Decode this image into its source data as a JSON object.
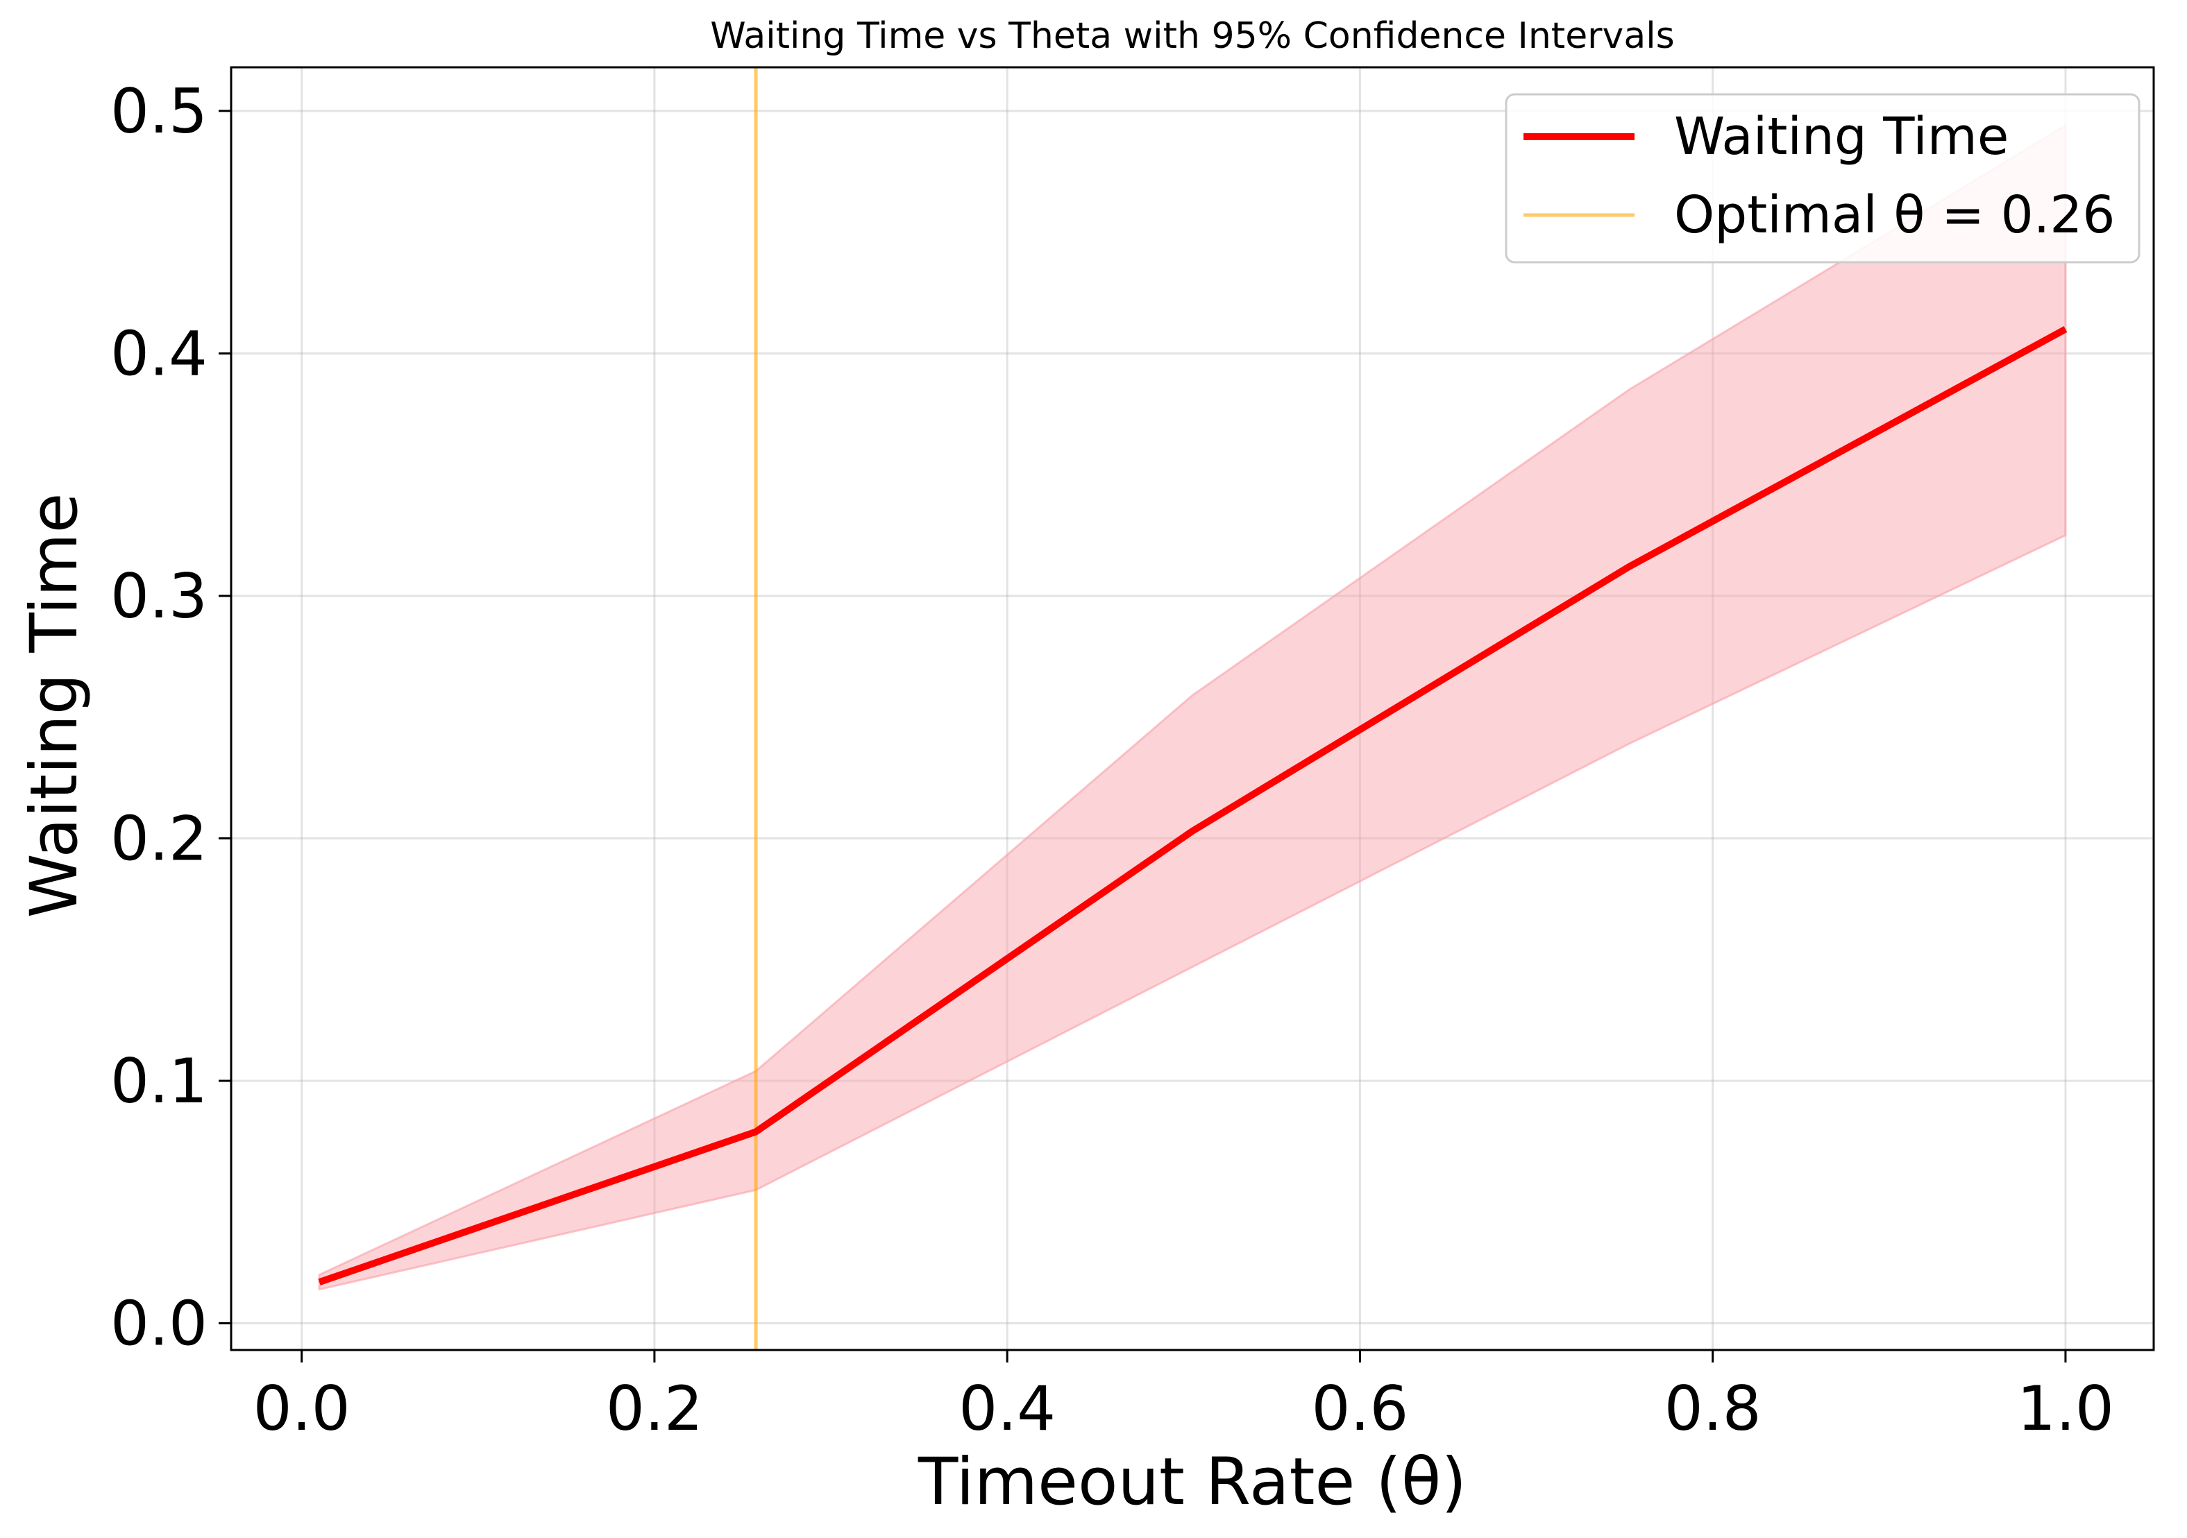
{
  "chart_data": {
    "type": "line",
    "title": "Waiting Time vs Theta with 95% Confidence Intervals",
    "xlabel": "Timeout Rate (θ)",
    "ylabel": "Waiting Time",
    "xlim": [
      -0.04,
      1.05
    ],
    "ylim": [
      -0.011,
      0.518
    ],
    "xticks": [
      0.0,
      0.2,
      0.4,
      0.6,
      0.8,
      1.0
    ],
    "xtick_labels": [
      "0.0",
      "0.2",
      "0.4",
      "0.6",
      "0.8",
      "1.0"
    ],
    "yticks": [
      0.0,
      0.1,
      0.2,
      0.3,
      0.4,
      0.5
    ],
    "ytick_labels": [
      "0.0",
      "0.1",
      "0.2",
      "0.3",
      "0.4",
      "0.5"
    ],
    "grid": true,
    "legend_position": "upper right",
    "series": [
      {
        "name": "Waiting Time",
        "color": "#ff0000",
        "x": [
          0.01,
          0.2575,
          0.505,
          0.7525,
          1.0
        ],
        "y": [
          0.017,
          0.079,
          0.203,
          0.312,
          0.41
        ],
        "ci_lower": [
          0.014,
          0.055,
          0.147,
          0.239,
          0.325
        ],
        "ci_upper": [
          0.02,
          0.104,
          0.259,
          0.385,
          0.494
        ],
        "ci_color": "#f8a0a8"
      }
    ],
    "vlines": [
      {
        "name": "Optimal θ = 0.26",
        "x": 0.2575,
        "color": "#ffa500"
      }
    ]
  }
}
